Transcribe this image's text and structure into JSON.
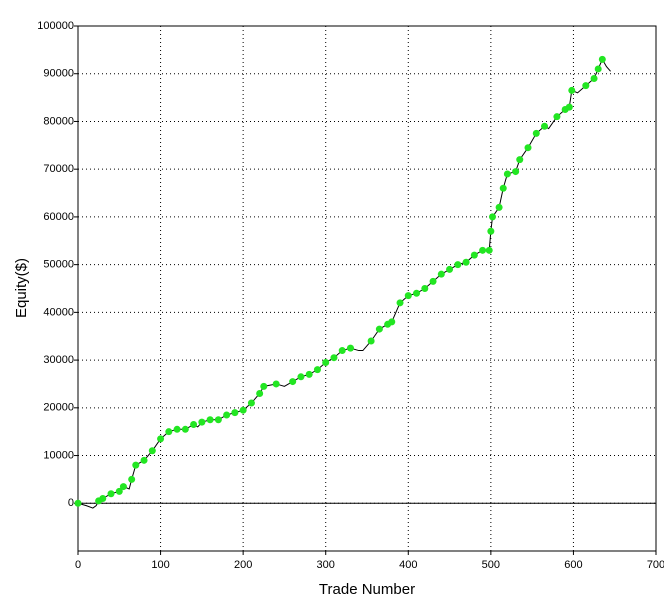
{
  "chart_data": {
    "type": "line",
    "x_label": "Trade Number",
    "y_label": "Equity($)",
    "x": [
      0,
      10,
      18,
      22,
      25,
      30,
      40,
      50,
      55,
      62,
      65,
      70,
      80,
      90,
      100,
      110,
      120,
      130,
      140,
      145,
      150,
      160,
      170,
      180,
      190,
      200,
      210,
      220,
      225,
      240,
      250,
      260,
      270,
      280,
      290,
      300,
      310,
      320,
      330,
      340,
      345,
      355,
      365,
      375,
      380,
      390,
      400,
      410,
      420,
      430,
      440,
      450,
      460,
      470,
      480,
      490,
      498,
      500,
      502,
      510,
      515,
      520,
      530,
      535,
      545,
      555,
      565,
      570,
      580,
      590,
      595,
      598,
      605,
      615,
      625,
      630,
      635,
      640,
      645
    ],
    "series": [
      {
        "color": "#000000",
        "marker_color": "#22e622",
        "values": [
          0,
          -500,
          -1000,
          -500,
          500,
          1000,
          2000,
          2500,
          3500,
          3000,
          5000,
          8000,
          9000,
          11000,
          13500,
          15000,
          15500,
          15500,
          16500,
          16000,
          17000,
          17500,
          17500,
          18500,
          19000,
          19500,
          21000,
          23000,
          24500,
          25000,
          24500,
          25500,
          26500,
          27000,
          28000,
          29500,
          30500,
          32000,
          32500,
          32000,
          32000,
          34000,
          36500,
          37500,
          38000,
          42000,
          43500,
          44000,
          45000,
          46500,
          48000,
          49000,
          50000,
          50500,
          52000,
          53000,
          53000,
          57000,
          60000,
          62000,
          66000,
          69000,
          69500,
          72000,
          74500,
          77500,
          79000,
          78500,
          81000,
          82500,
          83000,
          86500,
          86000,
          87500,
          89000,
          91000,
          93000,
          91500,
          90500
        ]
      }
    ],
    "xlim": [
      0,
      700
    ],
    "xticks": [
      0,
      100,
      200,
      300,
      400,
      500,
      600,
      700
    ],
    "ylim": [
      -10000,
      100000
    ],
    "yticks": [
      0,
      10000,
      20000,
      30000,
      40000,
      50000,
      60000,
      70000,
      80000,
      90000,
      100000
    ],
    "grid": true
  }
}
